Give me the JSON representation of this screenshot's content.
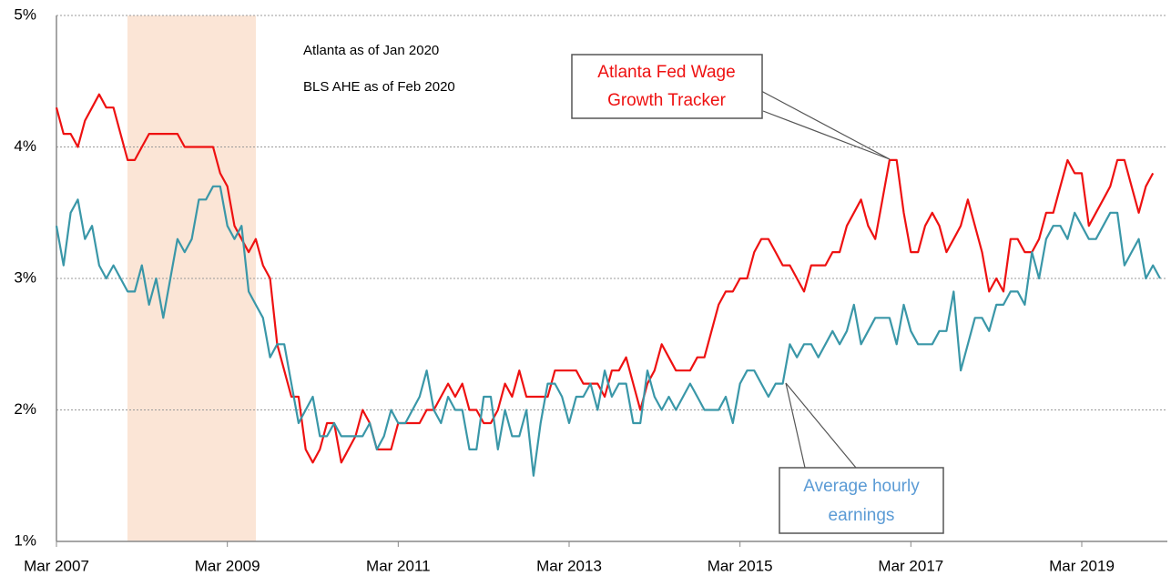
{
  "chart_data": {
    "type": "line",
    "annotations": [
      "Atlanta as of Jan 2020",
      "BLS AHE as of Feb 2020"
    ],
    "callouts": [
      [
        "Atlanta Fed Wage",
        "Growth Tracker"
      ],
      [
        "Average hourly",
        "earnings"
      ]
    ],
    "categories": [
      "Mar 2007",
      null,
      null,
      null,
      null,
      null,
      null,
      null,
      null,
      null,
      null,
      null,
      null,
      null,
      null,
      null,
      null,
      null,
      null,
      null,
      null,
      null,
      null,
      null,
      "Mar 2009",
      null,
      null,
      null,
      null,
      null,
      null,
      null,
      null,
      null,
      null,
      null,
      null,
      null,
      null,
      null,
      null,
      null,
      null,
      null,
      null,
      null,
      null,
      null,
      "Mar 2011",
      null,
      null,
      null,
      null,
      null,
      null,
      null,
      null,
      null,
      null,
      null,
      null,
      null,
      null,
      null,
      null,
      null,
      null,
      null,
      null,
      null,
      null,
      null,
      "Mar 2013",
      null,
      null,
      null,
      null,
      null,
      null,
      null,
      null,
      null,
      null,
      null,
      null,
      null,
      null,
      null,
      null,
      null,
      null,
      null,
      null,
      null,
      null,
      null,
      "Mar 2015",
      null,
      null,
      null,
      null,
      null,
      null,
      null,
      null,
      null,
      null,
      null,
      null,
      null,
      null,
      null,
      null,
      null,
      null,
      null,
      null,
      null,
      null,
      null,
      "Mar 2017",
      null,
      null,
      null,
      null,
      null,
      null,
      null,
      null,
      null,
      null,
      null,
      null,
      null,
      null,
      null,
      null,
      null,
      null,
      null,
      null,
      null,
      null,
      null,
      "Mar 2019",
      null,
      null,
      null,
      null,
      null,
      null,
      null,
      null,
      null,
      null,
      null
    ],
    "series": [
      {
        "name": "Atlanta Fed Wage Growth Tracker",
        "color": "#ee1111",
        "values": [
          4.3,
          4.1,
          4.1,
          4.0,
          4.2,
          4.3,
          4.4,
          4.3,
          4.3,
          4.1,
          3.9,
          3.9,
          4.0,
          4.1,
          4.1,
          4.1,
          4.1,
          4.1,
          4.0,
          4.0,
          4.0,
          4.0,
          4.0,
          3.8,
          3.7,
          3.4,
          3.3,
          3.2,
          3.3,
          3.1,
          3.0,
          2.5,
          2.3,
          2.1,
          2.1,
          1.7,
          1.6,
          1.7,
          1.9,
          1.9,
          1.6,
          1.7,
          1.8,
          2.0,
          1.9,
          1.7,
          1.7,
          1.7,
          1.9,
          1.9,
          1.9,
          1.9,
          2.0,
          2.0,
          2.1,
          2.2,
          2.1,
          2.2,
          2.0,
          2.0,
          1.9,
          1.9,
          2.0,
          2.2,
          2.1,
          2.3,
          2.1,
          2.1,
          2.1,
          2.1,
          2.3,
          2.3,
          2.3,
          2.3,
          2.2,
          2.2,
          2.2,
          2.1,
          2.3,
          2.3,
          2.4,
          2.2,
          2.0,
          2.2,
          2.3,
          2.5,
          2.4,
          2.3,
          2.3,
          2.3,
          2.4,
          2.4,
          2.6,
          2.8,
          2.9,
          2.9,
          3.0,
          3.0,
          3.2,
          3.3,
          3.3,
          3.2,
          3.1,
          3.1,
          3.0,
          2.9,
          3.1,
          3.1,
          3.1,
          3.2,
          3.2,
          3.4,
          3.5,
          3.6,
          3.4,
          3.3,
          3.6,
          3.9,
          3.9,
          3.5,
          3.2,
          3.2,
          3.4,
          3.5,
          3.4,
          3.2,
          3.3,
          3.4,
          3.6,
          3.4,
          3.2,
          2.9,
          3.0,
          2.9,
          3.3,
          3.3,
          3.2,
          3.2,
          3.3,
          3.5,
          3.5,
          3.7,
          3.9,
          3.8,
          3.8,
          3.4,
          3.5,
          3.6,
          3.7,
          3.9,
          3.9,
          3.7,
          3.5,
          3.7,
          3.8,
          null
        ]
      },
      {
        "name": "Average hourly earnings",
        "color": "#3a97a8",
        "values": [
          3.4,
          3.1,
          3.5,
          3.6,
          3.3,
          3.4,
          3.1,
          3.0,
          3.1,
          3.0,
          2.9,
          2.9,
          3.1,
          2.8,
          3.0,
          2.7,
          3.0,
          3.3,
          3.2,
          3.3,
          3.6,
          3.6,
          3.7,
          3.7,
          3.4,
          3.3,
          3.4,
          2.9,
          2.8,
          2.7,
          2.4,
          2.5,
          2.5,
          2.2,
          1.9,
          2.0,
          2.1,
          1.8,
          1.8,
          1.9,
          1.8,
          1.8,
          1.8,
          1.8,
          1.9,
          1.7,
          1.8,
          2.0,
          1.9,
          1.9,
          2.0,
          2.1,
          2.3,
          2.0,
          1.9,
          2.1,
          2.0,
          2.0,
          1.7,
          1.7,
          2.1,
          2.1,
          1.7,
          2.0,
          1.8,
          1.8,
          2.0,
          1.5,
          1.9,
          2.2,
          2.2,
          2.1,
          1.9,
          2.1,
          2.1,
          2.2,
          2.0,
          2.3,
          2.1,
          2.2,
          2.2,
          1.9,
          1.9,
          2.3,
          2.1,
          2.0,
          2.1,
          2.0,
          2.1,
          2.2,
          2.1,
          2.0,
          2.0,
          2.0,
          2.1,
          1.9,
          2.2,
          2.3,
          2.3,
          2.2,
          2.1,
          2.2,
          2.2,
          2.5,
          2.4,
          2.5,
          2.5,
          2.4,
          2.5,
          2.6,
          2.5,
          2.6,
          2.8,
          2.5,
          2.6,
          2.7,
          2.7,
          2.7,
          2.5,
          2.8,
          2.6,
          2.5,
          2.5,
          2.5,
          2.6,
          2.6,
          2.9,
          2.3,
          2.5,
          2.7,
          2.7,
          2.6,
          2.8,
          2.8,
          2.9,
          2.9,
          2.8,
          3.2,
          3.0,
          3.3,
          3.4,
          3.4,
          3.3,
          3.5,
          3.4,
          3.3,
          3.3,
          3.4,
          3.5,
          3.5,
          3.1,
          3.2,
          3.3,
          3.0,
          3.1,
          3.0
        ]
      }
    ],
    "ylim": [
      1,
      5
    ],
    "yticks": [
      {
        "value": 1,
        "label": "1%"
      },
      {
        "value": 2,
        "label": "2%"
      },
      {
        "value": 3,
        "label": "3%"
      },
      {
        "value": 4,
        "label": "4%"
      },
      {
        "value": 5,
        "label": "5%"
      }
    ],
    "grid": true
  }
}
